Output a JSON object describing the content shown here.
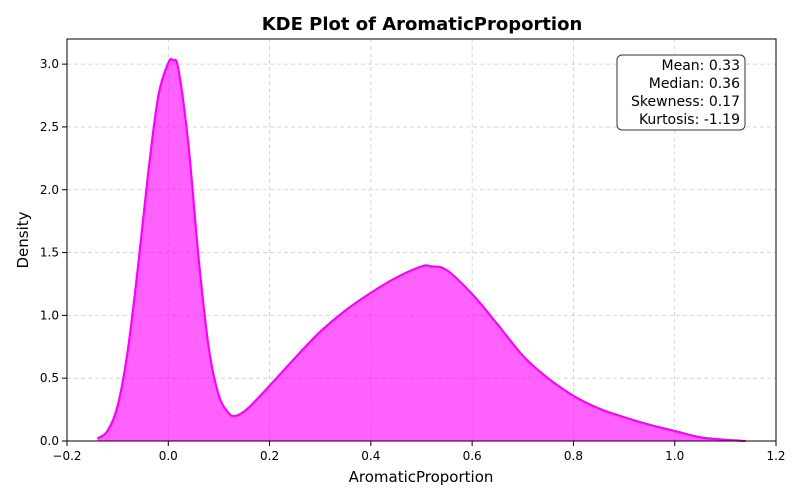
{
  "chart_data": {
    "type": "area",
    "title": "KDE Plot of AromaticProportion",
    "xlabel": "AromaticProportion",
    "ylabel": "Density",
    "xlim": [
      -0.2,
      1.2
    ],
    "ylim": [
      0,
      3.2
    ],
    "x_ticks": [
      -0.2,
      0.0,
      0.2,
      0.4,
      0.6,
      0.8,
      1.0,
      1.2
    ],
    "y_ticks": [
      0.0,
      0.5,
      1.0,
      1.5,
      2.0,
      2.5,
      3.0
    ],
    "grid": true,
    "colors": {
      "fill": "#ff00ff",
      "fill_opacity": 0.62,
      "line": "#ff00ff"
    },
    "stats_box": {
      "placement": "top-right",
      "lines": [
        "Mean: 0.33",
        "Median: 0.36",
        "Skewness: 0.17",
        "Kurtosis: -1.19"
      ]
    },
    "series": [
      {
        "x": [
          -0.14,
          -0.12,
          -0.1,
          -0.08,
          -0.06,
          -0.04,
          -0.02,
          0.0,
          0.01,
          0.02,
          0.04,
          0.06,
          0.08,
          0.1,
          0.12,
          0.13,
          0.14,
          0.16,
          0.2,
          0.25,
          0.3,
          0.35,
          0.4,
          0.45,
          0.5,
          0.52,
          0.55,
          0.6,
          0.65,
          0.7,
          0.75,
          0.8,
          0.85,
          0.9,
          0.95,
          1.0,
          1.05,
          1.1,
          1.14
        ],
        "y": [
          0.02,
          0.08,
          0.28,
          0.72,
          1.38,
          2.12,
          2.74,
          3.01,
          3.03,
          2.96,
          2.35,
          1.45,
          0.74,
          0.36,
          0.22,
          0.2,
          0.21,
          0.27,
          0.44,
          0.66,
          0.87,
          1.04,
          1.18,
          1.3,
          1.39,
          1.39,
          1.36,
          1.17,
          0.93,
          0.68,
          0.5,
          0.36,
          0.26,
          0.19,
          0.13,
          0.08,
          0.03,
          0.01,
          0.0
        ]
      }
    ]
  }
}
